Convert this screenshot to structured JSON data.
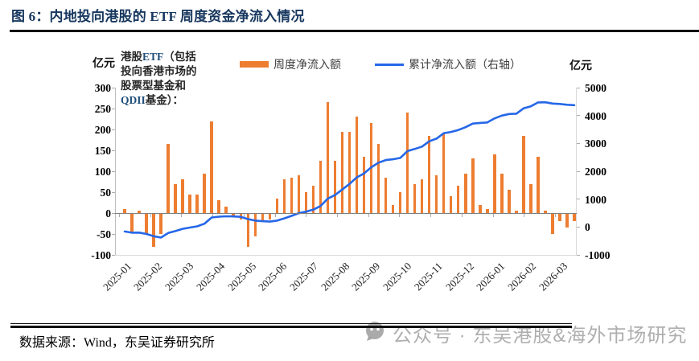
{
  "page": {
    "title": "图 6：内地投向港股的 ETF 周度资金净流入情况",
    "source_note": "数据来源：Wind，东吴证券研究所",
    "watermark": {
      "icon": "wechat-icon",
      "text": "公众号 · 东吴港股&海外市场研究"
    }
  },
  "chart_data": {
    "type": "bar",
    "subtype": "weekly bars + cumulative line (dual axis combo)",
    "title": "图 6：内地投向港股的 ETF 周度资金净流入情况",
    "annotation": "港股ETF（包括投向香港市场的股票型基金和QDII基金）：",
    "annotation_parts": {
      "part1": "港股",
      "part2": "ETF",
      "part3": "（包括\n投向香港市场的\n股票型基金和\n",
      "part4": "QDII",
      "part5": "基金）："
    },
    "legend_position": "top-center",
    "grid": "off",
    "left_axis": {
      "unit": "亿元",
      "min": -100,
      "max": 300,
      "ticks": [
        300,
        250,
        200,
        150,
        100,
        50,
        0,
        -50,
        -100
      ]
    },
    "right_axis": {
      "unit": "亿元",
      "min": -1000,
      "max": 5000,
      "ticks": [
        5000,
        4000,
        3000,
        2000,
        1000,
        0,
        -1000
      ]
    },
    "x_tick_labels": [
      "2025-01",
      "2025-02",
      "2025-03",
      "2025-04",
      "2025-05",
      "2025-06",
      "2025-07",
      "2025-08",
      "2025-09",
      "2025-10",
      "2025-11",
      "2025-12",
      "2026-01",
      "2026-02",
      "2026-03"
    ],
    "x_note": "weekly observations, 2025-01 through 2026-03",
    "series": [
      {
        "name": "周度净流入额",
        "type": "bar",
        "axis": "left",
        "color": "#ED7D31",
        "values": [
          10,
          -45,
          5,
          -50,
          -80,
          -50,
          165,
          70,
          80,
          45,
          45,
          95,
          220,
          30,
          15,
          -5,
          -15,
          -80,
          -55,
          -20,
          -15,
          35,
          80,
          85,
          90,
          50,
          65,
          125,
          265,
          125,
          195,
          195,
          230,
          135,
          215,
          165,
          85,
          20,
          50,
          240,
          70,
          80,
          185,
          90,
          190,
          40,
          65,
          95,
          130,
          20,
          10,
          140,
          95,
          55,
          5,
          185,
          70,
          135,
          5,
          -50,
          -20,
          -35,
          -20
        ]
      },
      {
        "name": "累计净流入额（右轴）",
        "type": "line",
        "axis": "right",
        "color": "#2667E8",
        "values": [
          -160,
          -205,
          -200,
          -250,
          -330,
          -380,
          -215,
          -145,
          -65,
          -20,
          25,
          120,
          340,
          370,
          385,
          380,
          365,
          285,
          230,
          210,
          195,
          230,
          310,
          400,
          495,
          550,
          620,
          750,
          1015,
          1145,
          1345,
          1545,
          1780,
          1920,
          2140,
          2310,
          2400,
          2430,
          2480,
          2725,
          2800,
          2885,
          3075,
          3170,
          3365,
          3410,
          3480,
          3580,
          3710,
          3735,
          3750,
          3895,
          3995,
          4055,
          4065,
          4255,
          4330,
          4470,
          4475,
          4430,
          4415,
          4385,
          4370
        ]
      }
    ]
  }
}
